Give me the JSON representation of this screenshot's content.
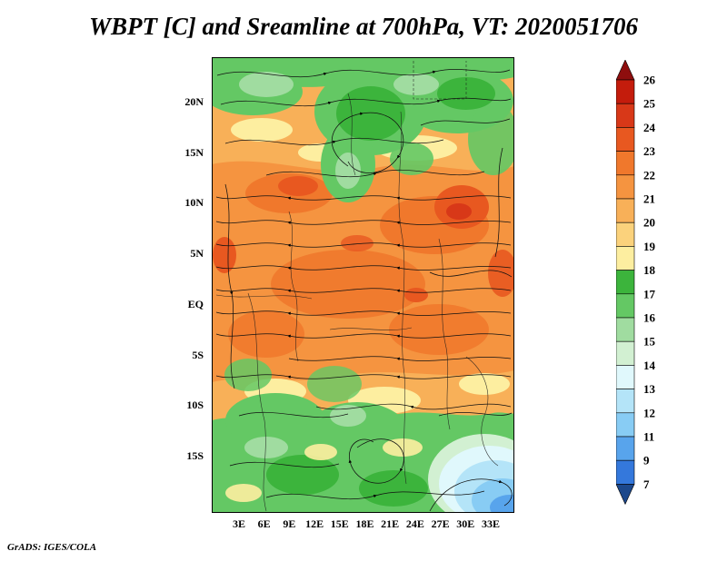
{
  "title": "WBPT [C] and Sreamline at 700hPa, VT: 2020051706",
  "credit": "GrADS: IGES/COLA",
  "chart_data": {
    "type": "heatmap",
    "title": "WBPT [C] and Sreamline at 700hPa, VT: 2020051706",
    "variable": "WBPT [C]",
    "overlay": "Streamline",
    "level": "700hPa",
    "valid_time": "2020051706",
    "lat_ticks": [
      "20N",
      "15N",
      "10N",
      "5N",
      "EQ",
      "5S",
      "10S",
      "15S"
    ],
    "lon_ticks": [
      "3E",
      "6E",
      "9E",
      "12E",
      "15E",
      "18E",
      "21E",
      "24E",
      "27E",
      "30E",
      "33E"
    ],
    "colorbar": {
      "boundaries_top_to_bottom": [
        "26",
        "25",
        "24",
        "23",
        "22",
        "21",
        "20",
        "19",
        "18",
        "17",
        "16",
        "15",
        "14",
        "13",
        "12",
        "11",
        "9",
        "7"
      ],
      "segment_colors_top_to_bottom": [
        "#c41c0c",
        "#d83818",
        "#e85820",
        "#f0782c",
        "#f59440",
        "#f8b058",
        "#fbd27c",
        "#fdeea0",
        "#3cb43c",
        "#64c864",
        "#a0dca0",
        "#d2f0d2",
        "#e0f8fc",
        "#b4e4f8",
        "#88ccf4",
        "#58a4ec",
        "#3478dc"
      ],
      "arrow_top_color": "#8e0e0e",
      "arrow_bottom_color": "#1c488c"
    }
  }
}
